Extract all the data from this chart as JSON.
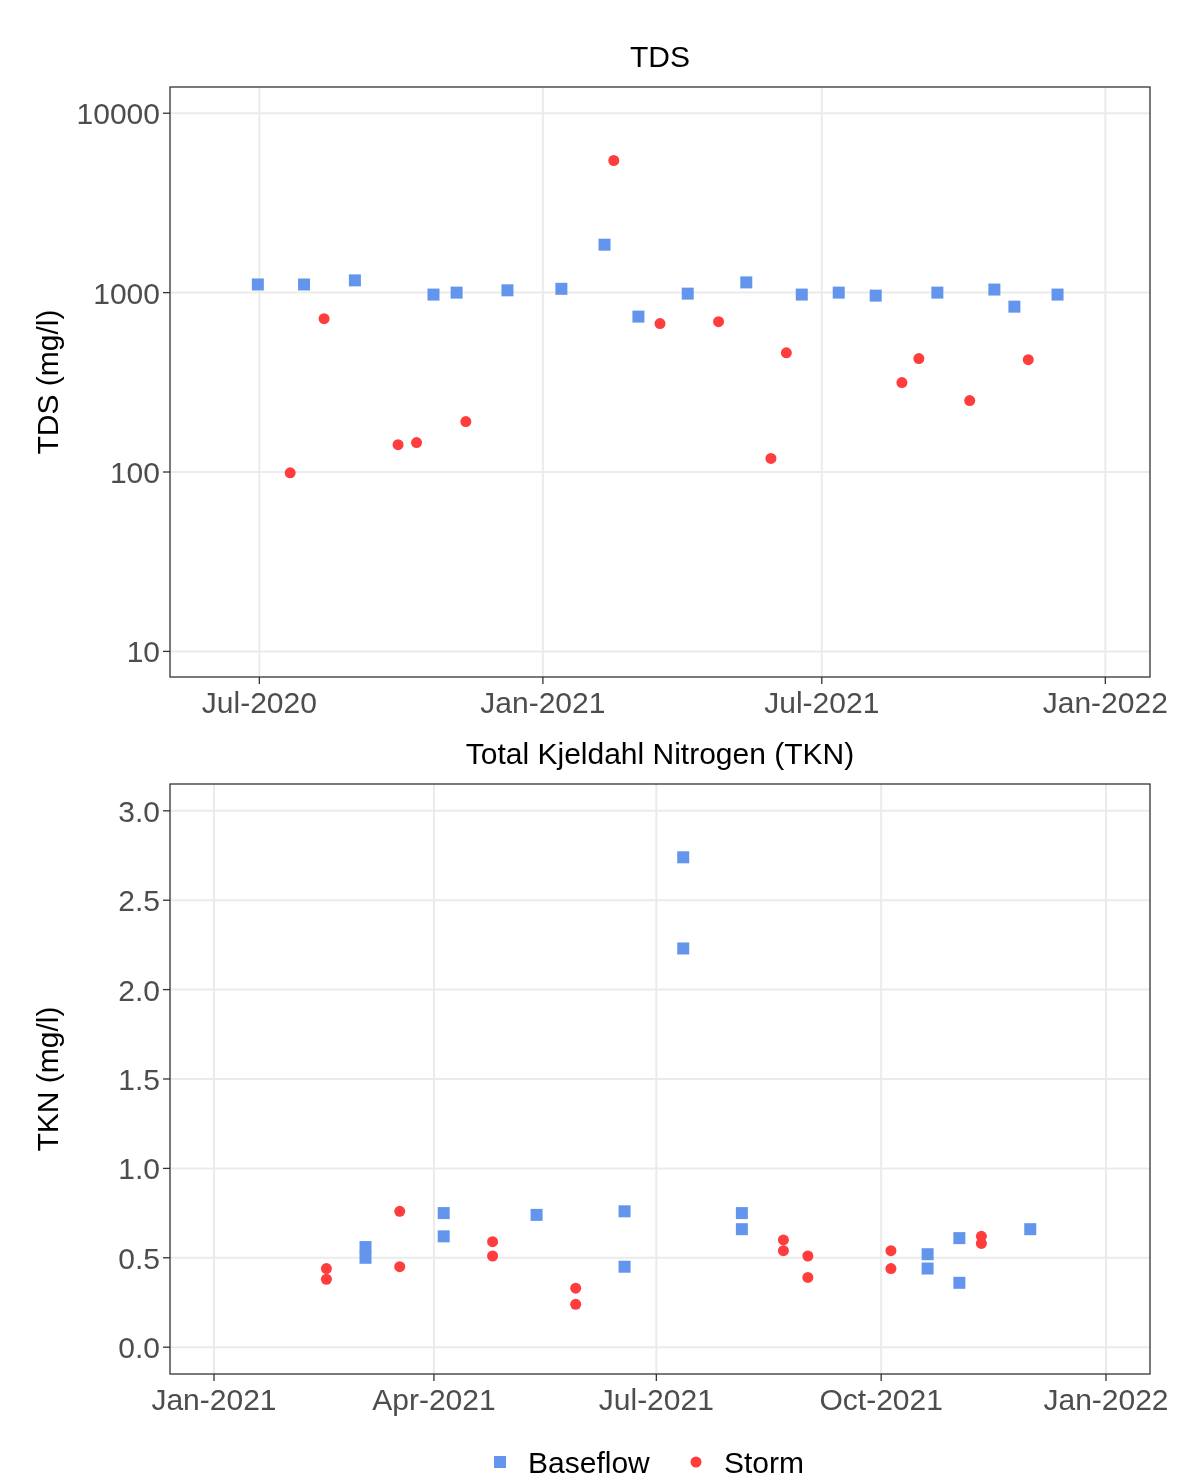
{
  "chart_data": [
    {
      "type": "scatter",
      "title": "TDS",
      "ylabel": "TDS (mg/l)",
      "log": "y",
      "grid": true,
      "legend": false,
      "xlim": [
        "2020-05-04",
        "2022-01-30"
      ],
      "xticks": [
        {
          "value": "2020-07-01",
          "label": "Jul-2020"
        },
        {
          "value": "2021-01-01",
          "label": "Jan-2021"
        },
        {
          "value": "2021-07-01",
          "label": "Jul-2021"
        },
        {
          "value": "2022-01-01",
          "label": "Jan-2022"
        }
      ],
      "ylim": [
        7.2,
        14000
      ],
      "yticks": [
        10,
        100,
        1000,
        10000
      ],
      "series": [
        {
          "color": "#6495ed",
          "marker": "square",
          "x": [
            "2020-06-30",
            "2020-07-30",
            "2020-09-01",
            "2020-10-22",
            "2020-11-06",
            "2020-12-09",
            "2021-01-13",
            "2021-02-10",
            "2021-03-04",
            "2021-04-05",
            "2021-05-13",
            "2021-06-18",
            "2021-07-12",
            "2021-08-05",
            "2021-09-14",
            "2021-10-21",
            "2021-11-03",
            "2021-12-01"
          ],
          "values": [
            1110,
            1110,
            1170,
            975,
            1000,
            1030,
            1050,
            1850,
            735,
            987,
            1140,
            975,
            1000,
            962,
            1000,
            1040,
            835,
            975
          ]
        },
        {
          "color": "#ff3d3d",
          "marker": "circle",
          "x": [
            "2020-07-21",
            "2020-08-12",
            "2020-09-29",
            "2020-10-11",
            "2020-11-12",
            "2021-02-16",
            "2021-03-18",
            "2021-04-25",
            "2021-05-29",
            "2021-06-08",
            "2021-08-22",
            "2021-09-02",
            "2021-10-05",
            "2021-11-12"
          ],
          "values": [
            99,
            716,
            142,
            146,
            191,
            5450,
            672,
            689,
            119,
            462,
            315,
            429,
            250,
            423
          ]
        }
      ]
    },
    {
      "type": "scatter",
      "title": "Total Kjeldahl Nitrogen (TKN)",
      "ylabel": "TKN (mg/l)",
      "grid": true,
      "legend": "bottom",
      "xlim": [
        "2020-12-14",
        "2022-01-19"
      ],
      "xticks": [
        {
          "value": "2021-01-01",
          "label": "Jan-2021"
        },
        {
          "value": "2021-04-01",
          "label": "Apr-2021"
        },
        {
          "value": "2021-07-01",
          "label": "Jul-2021"
        },
        {
          "value": "2021-10-01",
          "label": "Oct-2021"
        },
        {
          "value": "2022-01-01",
          "label": "Jan-2022"
        }
      ],
      "ylim": [
        -0.15,
        3.15
      ],
      "yticks": [
        {
          "value": 0,
          "label": "0.0"
        },
        {
          "value": 0.5,
          "label": "0.5"
        },
        {
          "value": 1,
          "label": "1.0"
        },
        {
          "value": 1.5,
          "label": "1.5"
        },
        {
          "value": 2,
          "label": "2.0"
        },
        {
          "value": 2.5,
          "label": "2.5"
        },
        {
          "value": 3,
          "label": "3.0"
        }
      ],
      "series": [
        {
          "name": "Baseflow",
          "color": "#6495ed",
          "marker": "square",
          "x": [
            "2021-03-04",
            "2021-03-04",
            "2021-04-05",
            "2021-04-05",
            "2021-05-13",
            "2021-06-18",
            "2021-06-18",
            "2021-07-12",
            "2021-07-12",
            "2021-08-05",
            "2021-08-05",
            "2021-10-20",
            "2021-10-20",
            "2021-11-02",
            "2021-11-02",
            "2021-12-01"
          ],
          "values": [
            0.56,
            0.5,
            0.75,
            0.62,
            0.74,
            0.76,
            0.45,
            2.74,
            2.23,
            0.75,
            0.66,
            0.52,
            0.44,
            0.61,
            0.36,
            0.66
          ]
        },
        {
          "name": "Storm",
          "color": "#ff3d3d",
          "marker": "circle",
          "x": [
            "2021-02-16",
            "2021-02-16",
            "2021-03-18",
            "2021-03-18",
            "2021-04-25",
            "2021-04-25",
            "2021-05-29",
            "2021-05-29",
            "2021-08-22",
            "2021-08-22",
            "2021-09-01",
            "2021-09-01",
            "2021-10-05",
            "2021-10-05",
            "2021-11-11",
            "2021-11-11"
          ],
          "values": [
            0.44,
            0.38,
            0.76,
            0.45,
            0.59,
            0.51,
            0.33,
            0.24,
            0.6,
            0.54,
            0.51,
            0.39,
            0.54,
            0.44,
            0.62,
            0.58
          ]
        }
      ]
    }
  ]
}
